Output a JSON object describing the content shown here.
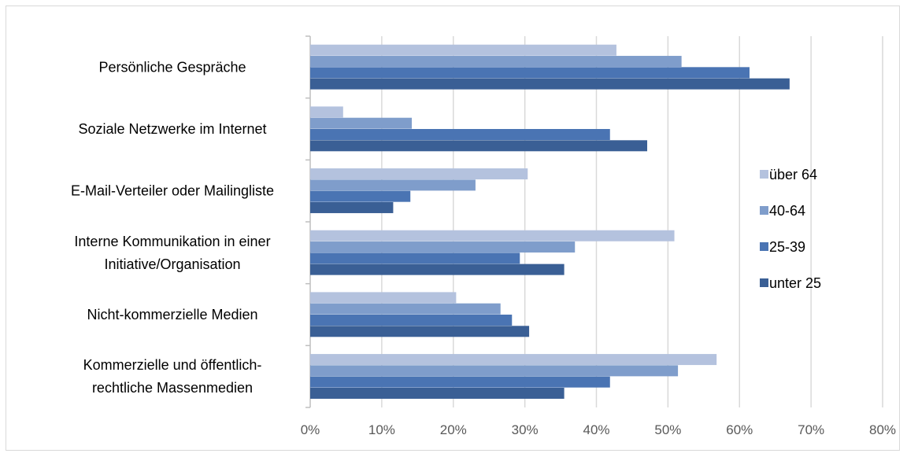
{
  "chart_data": {
    "type": "bar",
    "orientation": "horizontal",
    "title": "",
    "xlabel": "",
    "ylabel": "",
    "xlim": [
      0,
      80
    ],
    "x_ticks": [
      "0%",
      "10%",
      "20%",
      "30%",
      "40%",
      "50%",
      "60%",
      "70%",
      "80%"
    ],
    "grid": true,
    "legend_position": "right",
    "categories": [
      [
        "Persönliche Gespräche"
      ],
      [
        "Soziale Netzwerke im Internet"
      ],
      [
        "E-Mail-Verteiler oder Mailingliste"
      ],
      [
        "Interne Kommunikation in einer",
        "Initiative/Organisation"
      ],
      [
        "Nicht-kommerzielle Medien"
      ],
      [
        "Kommerzielle und öffentlich-",
        "rechtliche Massenmedien"
      ]
    ],
    "series": [
      {
        "name": "über 64",
        "color": "#b4c2de",
        "values": [
          42.8,
          4.6,
          30.4,
          50.9,
          20.4,
          56.8
        ]
      },
      {
        "name": "40-64",
        "color": "#7f9dcb",
        "values": [
          51.9,
          14.2,
          23.1,
          37.0,
          26.6,
          51.4
        ]
      },
      {
        "name": "25-39",
        "color": "#4a74b3",
        "values": [
          61.4,
          41.9,
          14.0,
          29.3,
          28.2,
          41.9
        ]
      },
      {
        "name": "unter 25",
        "color": "#3a5f95",
        "values": [
          67.0,
          47.1,
          11.6,
          35.5,
          30.6,
          35.5
        ]
      }
    ],
    "legend_order": [
      "über 64",
      "40-64",
      "25-39",
      "unter 25"
    ]
  }
}
